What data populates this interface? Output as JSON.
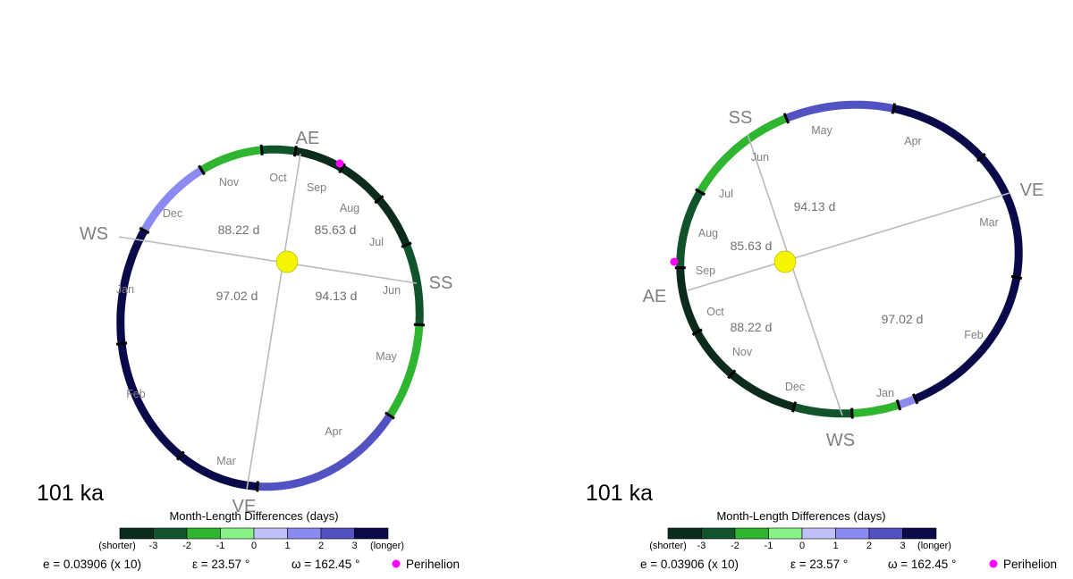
{
  "panels": [
    {
      "age": "101 ka",
      "seasons": [
        {
          "abbr": "AE",
          "duration": "88.22 d"
        },
        {
          "abbr": "SS",
          "duration": "85.63 d"
        },
        {
          "abbr": "VE",
          "duration": "94.13 d"
        },
        {
          "abbr": "WS",
          "duration": "97.02 d"
        }
      ],
      "months": [
        {
          "name": "Jan",
          "diff": 3
        },
        {
          "name": "Feb",
          "diff": 3
        },
        {
          "name": "Mar",
          "diff": 3
        },
        {
          "name": "Apr",
          "diff": 2
        },
        {
          "name": "May",
          "diff": -1
        },
        {
          "name": "Jun",
          "diff": -2
        },
        {
          "name": "Jul",
          "diff": -3
        },
        {
          "name": "Aug",
          "diff": -3
        },
        {
          "name": "Sep",
          "diff": -3
        },
        {
          "name": "Oct",
          "diff": -2
        },
        {
          "name": "Nov",
          "diff": -1
        },
        {
          "name": "Dec",
          "diff": 1
        }
      ]
    },
    {
      "age": "101 ka",
      "seasons": [
        {
          "abbr": "AE",
          "duration": "88.22 d"
        },
        {
          "abbr": "SS",
          "duration": "85.63 d"
        },
        {
          "abbr": "VE",
          "duration": "94.13 d"
        },
        {
          "abbr": "WS",
          "duration": "97.02 d"
        }
      ],
      "months": [
        {
          "name": "Jan",
          "diff": 3
        },
        {
          "name": "Feb",
          "diff": 3
        },
        {
          "name": "Mar",
          "diff": 3
        },
        {
          "name": "Apr",
          "diff": 2
        },
        {
          "name": "May",
          "diff": -1
        },
        {
          "name": "Jun",
          "diff": -2
        },
        {
          "name": "Jul",
          "diff": -3
        },
        {
          "name": "Aug",
          "diff": -3
        },
        {
          "name": "Sep",
          "diff": -3
        },
        {
          "name": "Oct",
          "diff": -2
        },
        {
          "name": "Nov",
          "diff": -1
        },
        {
          "name": "Dec",
          "diff": 1
        }
      ]
    }
  ],
  "colorbar": {
    "title": "Month-Length Differences (days)",
    "shorter_label": "(shorter)",
    "longer_label": "(longer)",
    "ticks": [
      "-3",
      "-2",
      "-1",
      "0",
      "1",
      "2",
      "3"
    ],
    "colors": [
      "#0b2c1c",
      "#11532b",
      "#2fb52f",
      "#88f288",
      "#c0c0fa",
      "#8a8af0",
      "#5252c2",
      "#0a0a4a"
    ]
  },
  "parameters": {
    "eccentricity": "e = 0.03906 (x 10)",
    "obliquity": "ε = 23.57 °",
    "perihelion_longitude": "ω = 162.45 °",
    "perihelion_legend": "Perihelion"
  },
  "colors": {
    "sun": "#f5f500",
    "perihelion": "#ff00ff",
    "axis_line": "#bbbbbb",
    "text_gray": "#808080"
  }
}
